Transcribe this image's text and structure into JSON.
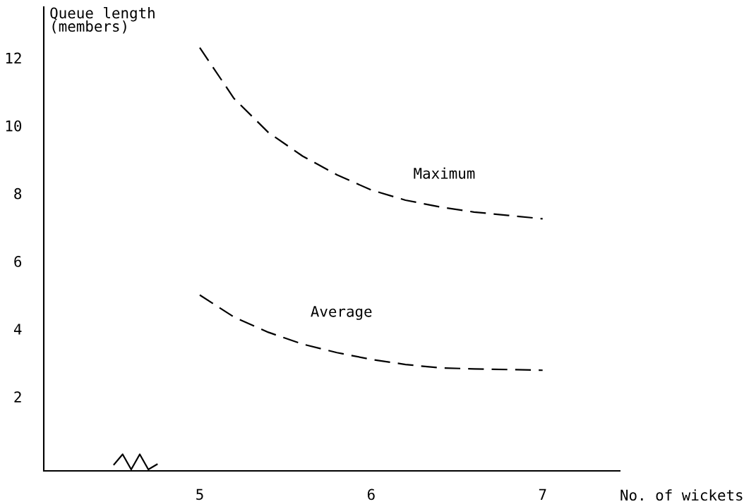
{
  "chart_data": {
    "type": "line",
    "xlabel": "No. of wickets",
    "ylabel": "Queue length\n(members)",
    "xlim": [
      4.09,
      7.45
    ],
    "xticks": [
      5,
      6,
      7
    ],
    "ylim": [
      -0.19,
      13.5
    ],
    "yticks": [
      2,
      4,
      6,
      8,
      10,
      12
    ],
    "grid": false,
    "legend": false,
    "marker": "none",
    "line_style": "dashed",
    "series": [
      {
        "name": "Maximum",
        "color": "#000000",
        "x": [
          5.0,
          5.2,
          5.4,
          5.6,
          5.8,
          6.0,
          6.2,
          6.4,
          6.6,
          6.8,
          7.0
        ],
        "values": [
          12.3,
          10.8,
          9.8,
          9.1,
          8.55,
          8.1,
          7.8,
          7.6,
          7.45,
          7.35,
          7.25
        ]
      },
      {
        "name": "Average",
        "color": "#000000",
        "x": [
          5.0,
          5.2,
          5.4,
          5.6,
          5.8,
          6.0,
          6.2,
          6.4,
          6.6,
          6.8,
          7.0
        ],
        "values": [
          5.0,
          4.35,
          3.9,
          3.55,
          3.3,
          3.1,
          2.95,
          2.85,
          2.82,
          2.8,
          2.78
        ]
      }
    ]
  }
}
